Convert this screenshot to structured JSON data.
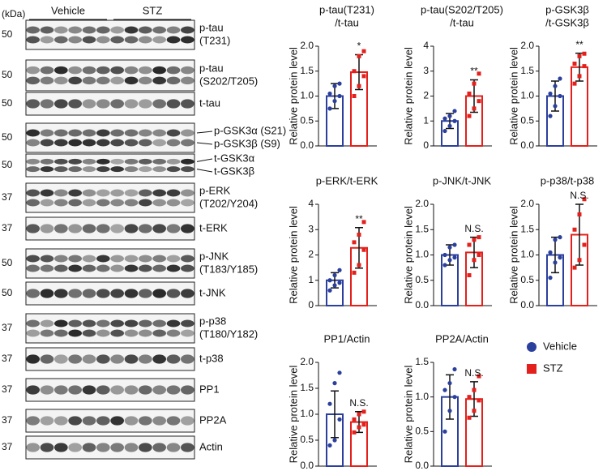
{
  "blots": {
    "unit": "(kDa)",
    "groups": [
      "Vehicle",
      "STZ"
    ],
    "rows": [
      {
        "marker": 50,
        "labels": [
          "p-tau",
          "(T231)"
        ]
      },
      {
        "marker": 50,
        "labels": [
          "p-tau",
          "(S202/T205)"
        ]
      },
      {
        "marker": 50,
        "labels": [
          "t-tau"
        ]
      },
      {
        "marker": 50,
        "labels": [
          "p-GSK3α (S21)",
          "p-GSK3β (S9)"
        ]
      },
      {
        "marker": 50,
        "labels": [
          "t-GSK3α",
          "t-GSK3β"
        ]
      },
      {
        "marker": 37,
        "labels": [
          "p-ERK",
          "(T202/Y204)"
        ]
      },
      {
        "marker": 37,
        "labels": [
          "t-ERK"
        ]
      },
      {
        "marker": 50,
        "labels": [
          "p-JNK",
          "(T183/Y185)"
        ]
      },
      {
        "marker": 50,
        "labels": [
          "t-JNK"
        ]
      },
      {
        "marker": 37,
        "labels": [
          "p-p38",
          "(T180/Y182)"
        ]
      },
      {
        "marker": 37,
        "labels": [
          "t-p38"
        ]
      },
      {
        "marker": 37,
        "labels": [
          "PP1"
        ]
      },
      {
        "marker": 37,
        "labels": [
          "PP2A"
        ]
      },
      {
        "marker": 37,
        "labels": [
          "Actin"
        ]
      }
    ]
  },
  "legend": {
    "items": [
      {
        "name": "Vehicle",
        "color": "#2b3f9c"
      },
      {
        "name": "STZ",
        "color": "#e3201b"
      }
    ]
  },
  "chart_data": [
    {
      "type": "bar",
      "title": [
        "p-tau(T231)",
        "/t-tau"
      ],
      "y_label": "Relative protein level",
      "values": [
        1.0,
        1.48
      ],
      "errors": [
        0.25,
        0.35
      ],
      "points": [
        [
          0.75,
          0.9,
          1.0,
          1.05,
          1.2,
          1.25
        ],
        [
          1.0,
          1.2,
          1.4,
          1.5,
          1.8,
          1.9
        ]
      ],
      "significance": "*",
      "ylim": [
        0,
        2.0
      ],
      "yticks": [
        {
          "value": 0,
          "label": "0.0"
        },
        0.5,
        {
          "value": 1,
          "label": "1.0"
        },
        1.5,
        {
          "value": 2,
          "label": "2.0"
        }
      ]
    },
    {
      "type": "bar",
      "title": [
        "p-tau(S202/T205)",
        "/t-tau"
      ],
      "y_label": "Relative protein level",
      "values": [
        1.0,
        2.0
      ],
      "errors": [
        0.3,
        0.65
      ],
      "points": [
        [
          0.6,
          0.8,
          1.0,
          1.1,
          1.2,
          1.4
        ],
        [
          1.2,
          1.5,
          1.8,
          2.1,
          2.5,
          2.9
        ]
      ],
      "significance": "**",
      "ylim": [
        0,
        4
      ],
      "yticks": [
        0,
        1,
        2,
        3,
        4
      ]
    },
    {
      "type": "bar",
      "title": [
        "p-GSK3β",
        "/t-GSK3β"
      ],
      "y_label": "Relative protein level",
      "values": [
        1.0,
        1.58
      ],
      "errors": [
        0.3,
        0.28
      ],
      "points": [
        [
          0.6,
          0.8,
          1.0,
          1.05,
          1.2,
          1.35
        ],
        [
          1.25,
          1.4,
          1.6,
          1.65,
          1.8,
          1.85
        ]
      ],
      "significance": "**",
      "ylim": [
        0,
        2.0
      ],
      "yticks": [
        {
          "value": 0,
          "label": "0.0"
        },
        0.5,
        {
          "value": 1,
          "label": "1.0"
        },
        1.5,
        {
          "value": 2,
          "label": "2.0"
        }
      ]
    },
    {
      "type": "bar",
      "title": [
        "p-ERK/t-ERK"
      ],
      "y_label": "Relative protein level",
      "values": [
        1.0,
        2.28
      ],
      "errors": [
        0.3,
        0.8
      ],
      "points": [
        [
          0.6,
          0.8,
          0.9,
          1.0,
          1.2,
          1.4
        ],
        [
          1.3,
          1.6,
          2.2,
          2.5,
          2.8,
          3.3
        ]
      ],
      "significance": "**",
      "ylim": [
        0,
        4
      ],
      "yticks": [
        0,
        1,
        2,
        3,
        4
      ]
    },
    {
      "type": "bar",
      "title": [
        "p-JNK/t-JNK"
      ],
      "y_label": "Relative protein level",
      "values": [
        1.0,
        1.05
      ],
      "errors": [
        0.2,
        0.3
      ],
      "points": [
        [
          0.8,
          0.9,
          0.95,
          1.0,
          1.15,
          1.2
        ],
        [
          0.6,
          0.9,
          1.0,
          1.2,
          1.3,
          1.35
        ]
      ],
      "significance": "N.S.",
      "ylim": [
        0,
        2.0
      ],
      "yticks": [
        {
          "value": 0,
          "label": "0.0"
        },
        0.5,
        {
          "value": 1,
          "label": "1.0"
        },
        1.5,
        {
          "value": 2,
          "label": "2.0"
        }
      ]
    },
    {
      "type": "bar",
      "title": [
        "p-p38/t-p38"
      ],
      "y_label": "Relative protein level",
      "values": [
        1.0,
        1.4
      ],
      "errors": [
        0.35,
        0.6
      ],
      "points": [
        [
          0.55,
          0.85,
          0.95,
          1.05,
          1.3,
          1.35
        ],
        [
          0.75,
          0.9,
          1.2,
          1.5,
          1.8,
          2.1
        ]
      ],
      "significance": "N.S.",
      "ylim": [
        0,
        2.0
      ],
      "yticks": [
        {
          "value": 0,
          "label": "0.0"
        },
        0.5,
        {
          "value": 1,
          "label": "1.0"
        },
        1.5,
        {
          "value": 2,
          "label": "2.0"
        }
      ]
    },
    {
      "type": "bar",
      "title": [
        "PP1/Actin"
      ],
      "y_label": "Relative protein level",
      "values": [
        1.0,
        0.85
      ],
      "errors": [
        0.45,
        0.2
      ],
      "points": [
        [
          0.4,
          0.5,
          0.9,
          1.2,
          1.6,
          1.8
        ],
        [
          0.65,
          0.75,
          0.8,
          0.9,
          1.0,
          1.05
        ]
      ],
      "significance": "N.S.",
      "ylim": [
        0,
        2.0
      ],
      "yticks": [
        {
          "value": 0,
          "label": "0.0"
        },
        0.5,
        {
          "value": 1,
          "label": "1.0"
        },
        1.5,
        {
          "value": 2,
          "label": "2.0"
        }
      ]
    },
    {
      "type": "bar",
      "title": [
        "PP2A/Actin"
      ],
      "y_label": "Relative protein level",
      "values": [
        1.0,
        0.97
      ],
      "errors": [
        0.32,
        0.25
      ],
      "points": [
        [
          0.5,
          0.8,
          1.0,
          1.1,
          1.2,
          1.4
        ],
        [
          0.7,
          0.8,
          0.95,
          1.0,
          1.1,
          1.3
        ]
      ],
      "significance": "N.S.",
      "ylim": [
        0,
        1.5
      ],
      "yticks": [
        {
          "value": 0,
          "label": "0.0"
        },
        0.5,
        {
          "value": 1,
          "label": "1.0"
        },
        1.5
      ]
    }
  ]
}
